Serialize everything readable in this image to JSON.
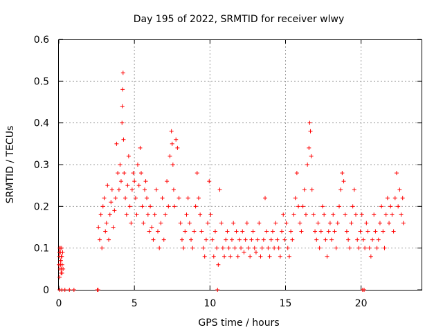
{
  "chart_data": {
    "type": "scatter",
    "title": "Day 195 of 2022, SRMTID for receiver wlwy",
    "xlabel": "GPS time / hours",
    "ylabel": "SRMTID / TECUs",
    "xlim": [
      0,
      24
    ],
    "ylim": [
      0,
      0.6
    ],
    "xticks": [
      0,
      5,
      10,
      15,
      20
    ],
    "xtick_labels": [
      "0",
      "5",
      "10",
      "15",
      "20"
    ],
    "yticks": [
      0,
      0.1,
      0.2,
      0.3,
      0.4,
      0.5,
      0.6
    ],
    "ytick_labels": [
      "0",
      "0.1",
      "0.2",
      "0.3",
      "0.4",
      "0.5",
      "0.6"
    ],
    "grid": true,
    "marker": "plus",
    "color": "#ff0000",
    "series": [
      {
        "name": "SRMTID",
        "x": [
          0.0,
          0.03,
          0.06,
          0.08,
          0.1,
          0.12,
          0.15,
          0.18,
          0.2,
          0.22,
          0.25,
          0.28,
          0.05,
          0.09,
          0.13,
          0.17,
          0.21,
          0.04,
          0.11,
          0.16,
          0.05,
          0.2,
          0.4,
          0.7,
          1.0,
          2.55,
          2.6,
          2.62,
          2.7,
          2.78,
          2.85,
          2.92,
          3.0,
          3.08,
          3.15,
          3.22,
          3.3,
          3.38,
          3.45,
          3.52,
          3.6,
          3.68,
          3.75,
          3.82,
          3.9,
          3.98,
          4.05,
          4.12,
          4.18,
          4.2,
          4.22,
          4.25,
          4.28,
          4.32,
          4.4,
          4.48,
          4.55,
          4.62,
          4.7,
          4.78,
          4.85,
          4.92,
          5.0,
          5.08,
          5.15,
          5.22,
          5.3,
          5.38,
          5.45,
          5.52,
          5.6,
          5.68,
          5.75,
          5.82,
          5.9,
          5.98,
          6.05,
          6.15,
          6.25,
          6.35,
          6.45,
          6.55,
          6.65,
          6.75,
          6.85,
          6.95,
          7.05,
          7.15,
          7.25,
          7.35,
          7.45,
          7.5,
          7.55,
          7.6,
          7.65,
          7.75,
          7.85,
          7.95,
          8.05,
          8.15,
          8.25,
          8.35,
          8.45,
          8.55,
          8.65,
          8.75,
          8.85,
          8.95,
          9.05,
          9.15,
          9.25,
          9.35,
          9.45,
          9.55,
          9.65,
          9.75,
          9.85,
          9.95,
          10.05,
          10.15,
          10.25,
          10.35,
          10.45,
          10.55,
          10.65,
          10.75,
          10.85,
          10.95,
          11.05,
          11.15,
          11.25,
          11.35,
          11.45,
          11.55,
          11.65,
          11.75,
          11.85,
          11.95,
          12.05,
          12.15,
          12.25,
          12.35,
          12.45,
          12.55,
          12.65,
          12.75,
          12.85,
          12.95,
          13.05,
          13.15,
          13.25,
          13.35,
          13.45,
          13.55,
          13.65,
          13.75,
          13.85,
          13.95,
          14.05,
          14.15,
          14.25,
          14.35,
          14.45,
          14.55,
          14.65,
          14.75,
          14.85,
          14.95,
          15.05,
          15.15,
          15.25,
          15.35,
          15.45,
          15.55,
          15.65,
          15.75,
          15.85,
          15.95,
          16.05,
          16.15,
          16.25,
          16.35,
          16.45,
          16.55,
          16.6,
          16.65,
          16.7,
          16.75,
          16.85,
          16.95,
          17.05,
          17.15,
          17.25,
          17.35,
          17.45,
          17.55,
          17.65,
          17.75,
          17.85,
          17.95,
          18.05,
          18.15,
          18.25,
          18.35,
          18.45,
          18.55,
          18.65,
          18.75,
          18.85,
          18.95,
          19.05,
          19.15,
          19.25,
          19.35,
          19.45,
          19.55,
          19.65,
          19.75,
          19.85,
          19.95,
          20.05,
          20.15,
          20.25,
          20.35,
          20.45,
          20.55,
          20.65,
          20.75,
          20.85,
          20.95,
          21.05,
          21.15,
          21.25,
          21.35,
          21.45,
          21.55,
          21.65,
          21.75,
          21.85,
          21.95,
          22.05,
          22.15,
          22.25,
          22.35,
          22.45,
          22.55,
          22.65,
          22.75,
          22.8,
          20.1,
          20.2,
          10.5
        ],
        "y": [
          0.06,
          0.08,
          0.1,
          0.05,
          0.09,
          0.07,
          0.04,
          0.1,
          0.08,
          0.06,
          0.09,
          0.05,
          0.03,
          0.1,
          0.07,
          0.08,
          0.04,
          0.09,
          0.06,
          0.05,
          0.0,
          0.0,
          0.0,
          0.0,
          0.0,
          0.0,
          0.0,
          0.15,
          0.12,
          0.18,
          0.1,
          0.2,
          0.22,
          0.14,
          0.16,
          0.25,
          0.12,
          0.18,
          0.21,
          0.24,
          0.15,
          0.19,
          0.22,
          0.35,
          0.28,
          0.24,
          0.3,
          0.26,
          0.4,
          0.44,
          0.48,
          0.52,
          0.36,
          0.28,
          0.22,
          0.18,
          0.25,
          0.32,
          0.2,
          0.16,
          0.24,
          0.28,
          0.26,
          0.22,
          0.18,
          0.3,
          0.25,
          0.34,
          0.28,
          0.2,
          0.16,
          0.24,
          0.26,
          0.22,
          0.18,
          0.14,
          0.2,
          0.15,
          0.12,
          0.18,
          0.24,
          0.14,
          0.1,
          0.16,
          0.22,
          0.12,
          0.18,
          0.26,
          0.2,
          0.32,
          0.38,
          0.35,
          0.3,
          0.24,
          0.2,
          0.36,
          0.34,
          0.22,
          0.16,
          0.12,
          0.1,
          0.14,
          0.18,
          0.22,
          0.16,
          0.12,
          0.1,
          0.14,
          0.2,
          0.28,
          0.22,
          0.18,
          0.14,
          0.1,
          0.08,
          0.12,
          0.16,
          0.26,
          0.18,
          0.12,
          0.08,
          0.14,
          0.1,
          0.06,
          0.24,
          0.16,
          0.1,
          0.08,
          0.12,
          0.14,
          0.1,
          0.08,
          0.12,
          0.16,
          0.1,
          0.14,
          0.08,
          0.12,
          0.1,
          0.14,
          0.09,
          0.12,
          0.16,
          0.1,
          0.08,
          0.12,
          0.14,
          0.1,
          0.09,
          0.12,
          0.16,
          0.08,
          0.1,
          0.12,
          0.22,
          0.14,
          0.1,
          0.08,
          0.12,
          0.14,
          0.1,
          0.16,
          0.12,
          0.1,
          0.08,
          0.14,
          0.18,
          0.12,
          0.16,
          0.1,
          0.08,
          0.14,
          0.12,
          0.18,
          0.22,
          0.28,
          0.2,
          0.16,
          0.14,
          0.2,
          0.24,
          0.18,
          0.3,
          0.34,
          0.4,
          0.38,
          0.32,
          0.24,
          0.18,
          0.14,
          0.12,
          0.16,
          0.1,
          0.14,
          0.2,
          0.18,
          0.12,
          0.08,
          0.14,
          0.16,
          0.12,
          0.18,
          0.14,
          0.1,
          0.16,
          0.2,
          0.24,
          0.28,
          0.26,
          0.18,
          0.14,
          0.12,
          0.1,
          0.16,
          0.2,
          0.24,
          0.18,
          0.12,
          0.1,
          0.14,
          0.18,
          0.12,
          0.1,
          0.16,
          0.14,
          0.1,
          0.08,
          0.12,
          0.18,
          0.14,
          0.1,
          0.12,
          0.16,
          0.2,
          0.14,
          0.1,
          0.18,
          0.22,
          0.16,
          0.2,
          0.18,
          0.14,
          0.22,
          0.28,
          0.2,
          0.24,
          0.18,
          0.22,
          0.16,
          0.0,
          0.0,
          0.0
        ]
      }
    ]
  }
}
